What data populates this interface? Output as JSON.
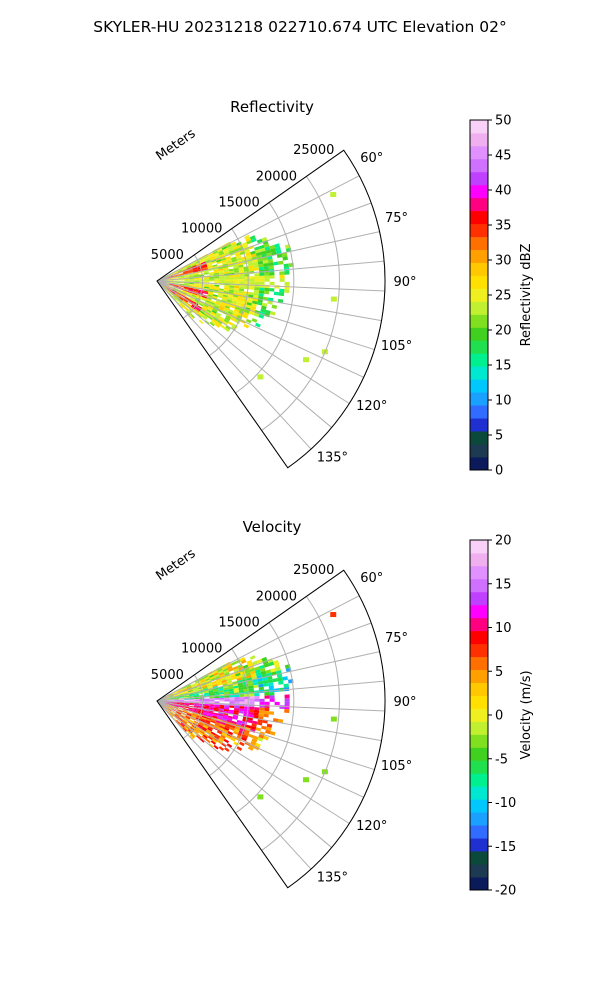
{
  "figure": {
    "title": "SKYLER-HU  20231218  022710.674 UTC Elevation 02°"
  },
  "chart_data": [
    {
      "type": "heatmap",
      "subtype": "radar-ppi-sector",
      "title": "Reflectivity",
      "radial_label": "Meters",
      "radial_ticks": [
        5000,
        10000,
        15000,
        20000,
        25000
      ],
      "radial_range": [
        0,
        25000
      ],
      "azimuth_ticks": [
        "60°",
        "75°",
        "90°",
        "105°",
        "120°",
        "135°"
      ],
      "azimuth_range_deg": [
        55,
        145
      ],
      "grid": true,
      "colorbar": {
        "label": "Reflectivity dBZ",
        "range": [
          0,
          50
        ],
        "ticks": [
          0,
          5,
          10,
          15,
          20,
          25,
          30,
          35,
          40,
          45,
          50
        ],
        "placement": "right",
        "colors": [
          "#0a1a5a",
          "#1c3a52",
          "#0b4a3a",
          "#1f2fd0",
          "#2f6cff",
          "#1aa0ff",
          "#00c8ff",
          "#00e8d0",
          "#00f090",
          "#20e050",
          "#40d020",
          "#80e020",
          "#c0f030",
          "#f0f020",
          "#ffe000",
          "#ffc800",
          "#ffa000",
          "#ff7000",
          "#ff3000",
          "#ff0000",
          "#ff0080",
          "#ff00ff",
          "#c040ff",
          "#d070ff",
          "#e090ff",
          "#f0b0f0",
          "#f8d0f8"
        ]
      },
      "field_summary": "reflectivity field mostly 15 to 30 dBZ, with embedded 30 to 40 dBZ cores near the radar"
    },
    {
      "type": "heatmap",
      "subtype": "radar-ppi-sector",
      "title": "Velocity",
      "radial_label": "Meters",
      "radial_ticks": [
        5000,
        10000,
        15000,
        20000,
        25000
      ],
      "radial_range": [
        0,
        25000
      ],
      "azimuth_ticks": [
        "60°",
        "75°",
        "90°",
        "105°",
        "120°",
        "135°"
      ],
      "azimuth_range_deg": [
        55,
        145
      ],
      "grid": true,
      "colorbar": {
        "label": "Velocity (m/s)",
        "range": [
          -20,
          20
        ],
        "ticks": [
          -20,
          -15,
          -10,
          -5,
          0,
          5,
          10,
          15,
          20
        ],
        "placement": "right",
        "colors": [
          "#0a1a5a",
          "#1c3a52",
          "#0b4a3a",
          "#1f2fd0",
          "#2f6cff",
          "#1aa0ff",
          "#00c8ff",
          "#00e8d0",
          "#00f090",
          "#20e050",
          "#40d020",
          "#80e020",
          "#c0f030",
          "#f0f020",
          "#ffe000",
          "#ffc800",
          "#ffa000",
          "#ff7000",
          "#ff3000",
          "#ff0000",
          "#ff0080",
          "#ff00ff",
          "#c040ff",
          "#d070ff",
          "#e090ff",
          "#f0b0f0",
          "#f8d0f8"
        ]
      },
      "field_summary": "velocity field roughly -10 to 0 m/s on the northern side of 90°, and +5 to +15 m/s to the south of it"
    }
  ]
}
